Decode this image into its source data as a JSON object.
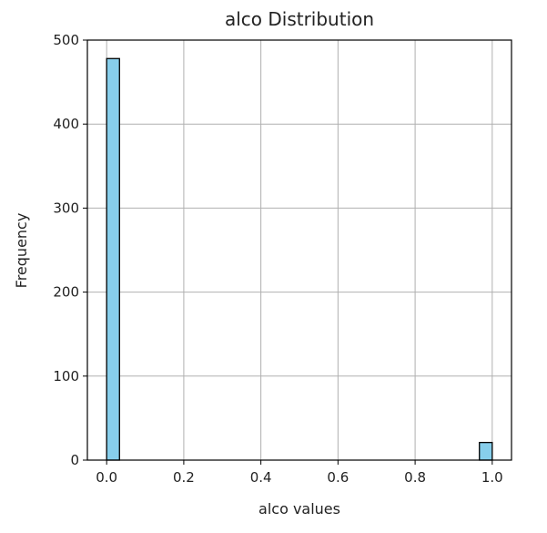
{
  "chart_data": {
    "type": "bar",
    "title": "alco Distribution",
    "xlabel": "alco values",
    "ylabel": "Frequency",
    "xlim": [
      -0.05,
      1.05
    ],
    "ylim": [
      0,
      500
    ],
    "x_ticks": [
      "0.0",
      "0.2",
      "0.4",
      "0.6",
      "0.8",
      "1.0"
    ],
    "y_ticks": [
      "0",
      "100",
      "200",
      "300",
      "400",
      "500"
    ],
    "grid": true,
    "bar_color": "#87CEEB",
    "edge_color": "#000000",
    "bins": [
      {
        "x0": 0.0,
        "x1": 0.0333,
        "count": 478
      },
      {
        "x0": 0.9667,
        "x1": 1.0,
        "count": 21
      }
    ]
  }
}
